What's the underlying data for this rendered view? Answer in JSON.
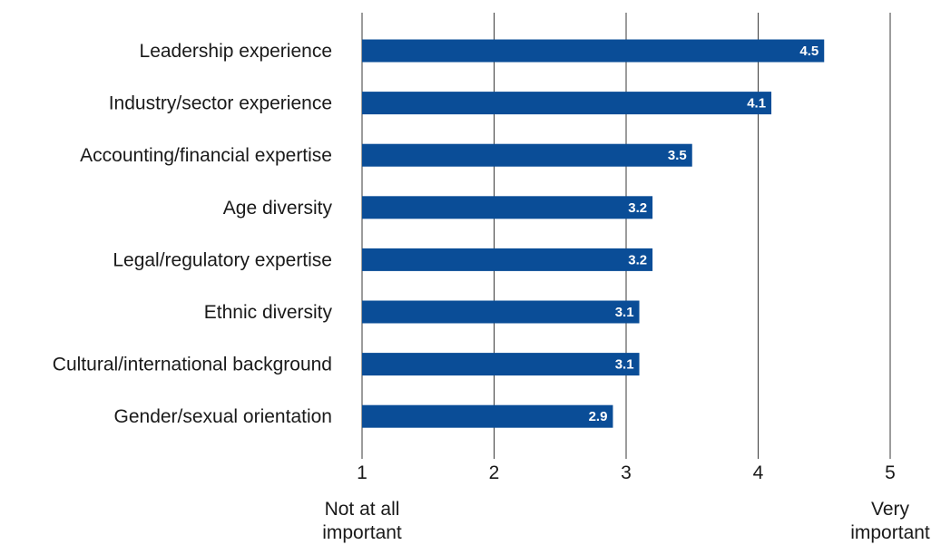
{
  "chart_data": {
    "type": "bar",
    "orientation": "horizontal",
    "categories": [
      "Leadership experience",
      "Industry/sector experience",
      "Accounting/financial expertise",
      "Age diversity",
      "Legal/regulatory expertise",
      "Ethnic diversity",
      "Cultural/international background",
      "Gender/sexual orientation"
    ],
    "values": [
      4.5,
      4.1,
      3.5,
      3.2,
      3.2,
      3.1,
      3.1,
      2.9
    ],
    "data_labels": [
      "4.5",
      "4.1",
      "3.5",
      "3.2",
      "3.2",
      "3.1",
      "3.1",
      "2.9"
    ],
    "xlim": [
      1,
      5
    ],
    "x_ticks": [
      1,
      2,
      3,
      4,
      5
    ],
    "x_tick_labels": [
      "1",
      "2",
      "3",
      "4",
      "5"
    ],
    "scale_low_label": [
      "Not at all",
      "important"
    ],
    "scale_high_label": [
      "Very",
      "important"
    ],
    "grid": true,
    "bar_color": "#0a4d97"
  }
}
